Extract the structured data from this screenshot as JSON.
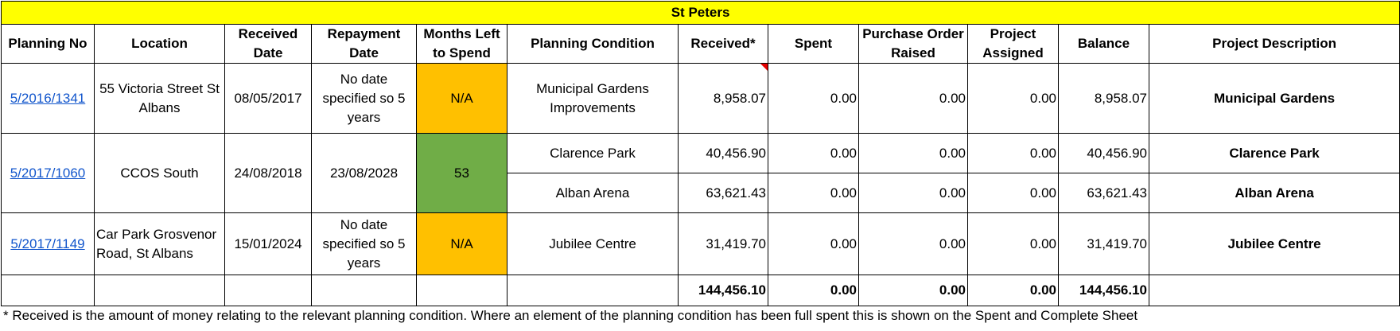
{
  "sheet": {
    "title": "St Peters",
    "headers": {
      "planning_no": "Planning No",
      "location": "Location",
      "received_date": "Received Date",
      "repayment_date": "Repayment Date",
      "months_left": "Months Left to Spend",
      "planning_condition": "Planning Condition",
      "received": "Received*",
      "spent": "Spent",
      "purchase_order": "Purchase Order Raised",
      "project_assigned": "Project Assigned",
      "balance": "Balance",
      "project_description": "Project Description"
    },
    "rows": [
      {
        "planning_no": "5/2016/1341",
        "location": "55 Victoria Street St Albans",
        "received_date": "08/05/2017",
        "repayment_date": "No date specified so 5 years",
        "months_left": "N/A",
        "conditions": [
          {
            "planning_condition": "Municipal Gardens Improvements",
            "received": "8,958.07",
            "spent": "0.00",
            "purchase_order": "0.00",
            "project_assigned": "0.00",
            "balance": "8,958.07",
            "project_description": "Municipal Gardens"
          }
        ]
      },
      {
        "planning_no": "5/2017/1060",
        "location": "CCOS South",
        "received_date": "24/08/2018",
        "repayment_date": "23/08/2028",
        "months_left": "53",
        "conditions": [
          {
            "planning_condition": "Clarence Park",
            "received": "40,456.90",
            "spent": "0.00",
            "purchase_order": "0.00",
            "project_assigned": "0.00",
            "balance": "40,456.90",
            "project_description": "Clarence Park"
          },
          {
            "planning_condition": "Alban Arena",
            "received": "63,621.43",
            "spent": "0.00",
            "purchase_order": "0.00",
            "project_assigned": "0.00",
            "balance": "63,621.43",
            "project_description": "Alban Arena"
          }
        ]
      },
      {
        "planning_no": "5/2017/1149",
        "location": "Car Park Grosvenor Road, St Albans",
        "received_date": "15/01/2024",
        "repayment_date": "No date specified so 5 years",
        "months_left": "N/A",
        "conditions": [
          {
            "planning_condition": "Jubilee Centre",
            "received": "31,419.70",
            "spent": "0.00",
            "purchase_order": "0.00",
            "project_assigned": "0.00",
            "balance": "31,419.70",
            "project_description": "Jubilee Centre"
          }
        ]
      }
    ],
    "totals": {
      "received": "144,456.10",
      "spent": "0.00",
      "purchase_order": "0.00",
      "project_assigned": "0.00",
      "balance": "144,456.10"
    },
    "footnote": "* Received is the amount of money relating to the relevant planning condition. Where an element of the planning condition has been full spent this is shown on the Spent and Complete Sheet",
    "colors": {
      "title_fill": "#ffff00",
      "months_na_fill": "#ffc000",
      "months_ok_fill": "#70ad47",
      "link": "#1155cc",
      "comment_flag": "#e60000"
    }
  }
}
